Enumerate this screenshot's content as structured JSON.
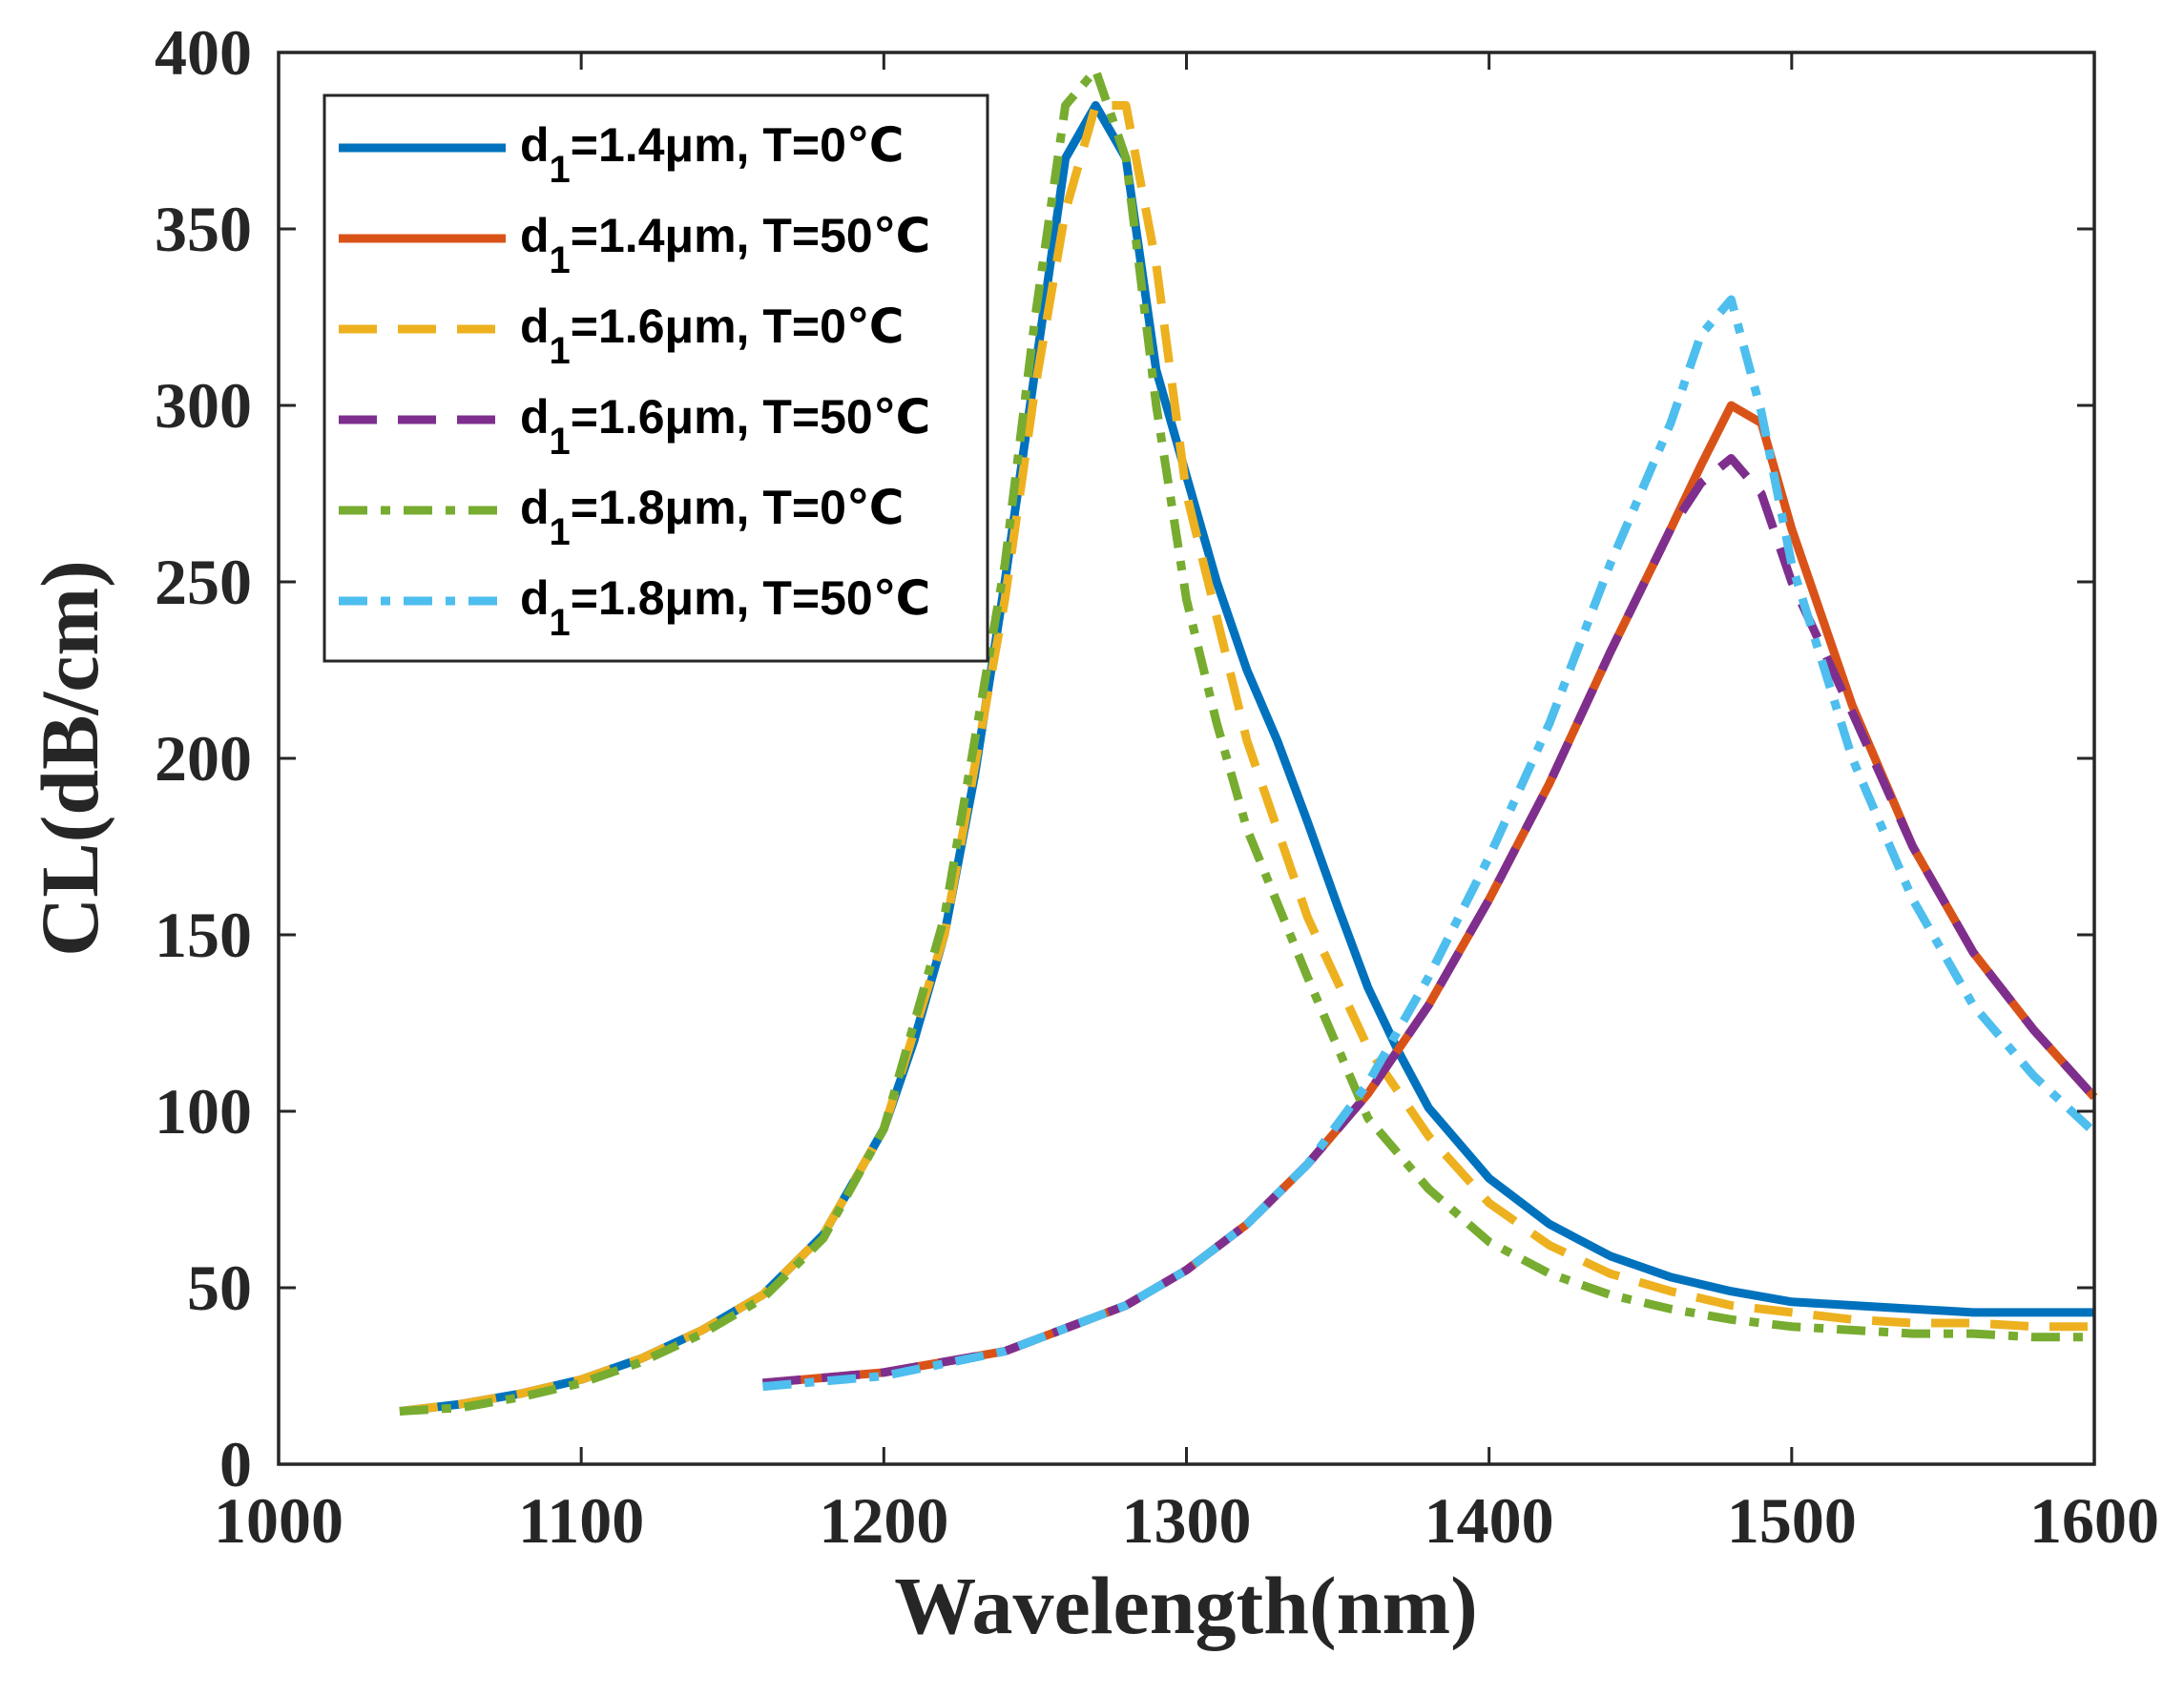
{
  "chart_data": {
    "type": "line",
    "title": "",
    "xlabel": "Wavelength(nm)",
    "ylabel": "CL(dB/cm)",
    "xlim": [
      1000,
      1600
    ],
    "ylim": [
      0,
      400
    ],
    "xticks": [
      1000,
      1100,
      1200,
      1300,
      1400,
      1500,
      1600
    ],
    "yticks": [
      0,
      50,
      100,
      150,
      200,
      250,
      300,
      350,
      400
    ],
    "grid": false,
    "legend_position": "top-left",
    "series": [
      {
        "name": "d1=1.4μm, T=0℃",
        "legend_main": "d",
        "legend_sub": "1",
        "legend_rest": "=1.4μm, T=0℃",
        "color": "#0072BD",
        "style": "solid",
        "x": [
          1040,
          1060,
          1080,
          1100,
          1120,
          1140,
          1160,
          1180,
          1200,
          1210,
          1220,
          1230,
          1240,
          1250,
          1260,
          1270,
          1280,
          1290,
          1300,
          1310,
          1320,
          1330,
          1340,
          1350,
          1360,
          1370,
          1380,
          1400,
          1420,
          1440,
          1460,
          1480,
          1500,
          1520,
          1540,
          1560,
          1580,
          1600
        ],
        "y": [
          15,
          17,
          20,
          24,
          30,
          38,
          48,
          65,
          95,
          120,
          150,
          195,
          250,
          310,
          370,
          385,
          370,
          310,
          280,
          250,
          225,
          205,
          182,
          158,
          135,
          117,
          101,
          81,
          68,
          59,
          53,
          49,
          46,
          45,
          44,
          43,
          43,
          43
        ]
      },
      {
        "name": "d1=1.4μm, T=50℃",
        "legend_main": "d",
        "legend_sub": "1",
        "legend_rest": "=1.4μm, T=50℃",
        "color": "#D95319",
        "style": "solid",
        "x": [
          1160,
          1200,
          1240,
          1280,
          1300,
          1320,
          1340,
          1360,
          1380,
          1400,
          1420,
          1440,
          1460,
          1470,
          1480,
          1490,
          1500,
          1520,
          1540,
          1560,
          1580,
          1600
        ],
        "y": [
          23,
          26,
          32,
          45,
          55,
          68,
          85,
          105,
          130,
          160,
          193,
          230,
          265,
          283,
          300,
          295,
          265,
          215,
          175,
          145,
          123,
          104
        ]
      },
      {
        "name": "d1=1.6μm, T=0℃",
        "legend_main": "d",
        "legend_sub": "1",
        "legend_rest": "=1.6μm, T=0℃",
        "color": "#EDB120",
        "style": "dashed",
        "x": [
          1040,
          1060,
          1080,
          1100,
          1120,
          1140,
          1160,
          1180,
          1200,
          1220,
          1240,
          1250,
          1260,
          1270,
          1280,
          1290,
          1300,
          1310,
          1320,
          1340,
          1360,
          1380,
          1400,
          1420,
          1440,
          1460,
          1480,
          1500,
          1520,
          1540,
          1560,
          1580,
          1600
        ],
        "y": [
          15,
          17,
          20,
          24,
          30,
          38,
          48,
          65,
          95,
          150,
          245,
          305,
          355,
          385,
          385,
          340,
          275,
          240,
          205,
          155,
          118,
          93,
          74,
          62,
          54,
          49,
          45,
          43,
          41,
          40,
          40,
          39,
          39
        ]
      },
      {
        "name": "d1=1.6μm, T=50℃",
        "legend_main": "d",
        "legend_sub": "1",
        "legend_rest": "=1.6μm, T=50℃",
        "color": "#7E2F8E",
        "style": "dashed",
        "x": [
          1160,
          1200,
          1240,
          1280,
          1300,
          1320,
          1340,
          1360,
          1380,
          1400,
          1420,
          1440,
          1460,
          1470,
          1480,
          1490,
          1500,
          1520,
          1540,
          1560,
          1580,
          1600
        ],
        "y": [
          23,
          26,
          32,
          45,
          55,
          68,
          85,
          105,
          130,
          160,
          193,
          230,
          265,
          278,
          285,
          275,
          250,
          213,
          175,
          145,
          123,
          104
        ]
      },
      {
        "name": "d1=1.8μm, T=0℃",
        "legend_main": "d",
        "legend_sub": "1",
        "legend_rest": "=1.8μm, T=0℃",
        "color": "#77AC30",
        "style": "dashdot",
        "x": [
          1040,
          1060,
          1080,
          1100,
          1120,
          1140,
          1160,
          1180,
          1200,
          1220,
          1240,
          1250,
          1260,
          1270,
          1280,
          1290,
          1300,
          1310,
          1320,
          1340,
          1360,
          1380,
          1400,
          1420,
          1440,
          1460,
          1480,
          1500,
          1520,
          1540,
          1560,
          1580,
          1600
        ],
        "y": [
          15,
          16,
          19,
          23,
          29,
          37,
          47,
          64,
          95,
          155,
          255,
          325,
          385,
          395,
          370,
          300,
          245,
          210,
          180,
          138,
          98,
          78,
          63,
          54,
          48,
          44,
          41,
          39,
          38,
          37,
          37,
          36,
          36
        ]
      },
      {
        "name": "d1=1.8μm, T=50℃",
        "legend_main": "d",
        "legend_sub": "1",
        "legend_rest": "=1.8μm, T=50℃",
        "color": "#4DBEEE",
        "style": "dashdot",
        "x": [
          1160,
          1200,
          1240,
          1280,
          1300,
          1320,
          1340,
          1360,
          1380,
          1400,
          1420,
          1440,
          1460,
          1470,
          1480,
          1490,
          1500,
          1520,
          1540,
          1560,
          1580,
          1600
        ],
        "y": [
          22,
          25,
          32,
          45,
          55,
          68,
          85,
          108,
          138,
          172,
          210,
          255,
          295,
          320,
          330,
          298,
          255,
          200,
          160,
          130,
          110,
          94
        ]
      }
    ]
  }
}
